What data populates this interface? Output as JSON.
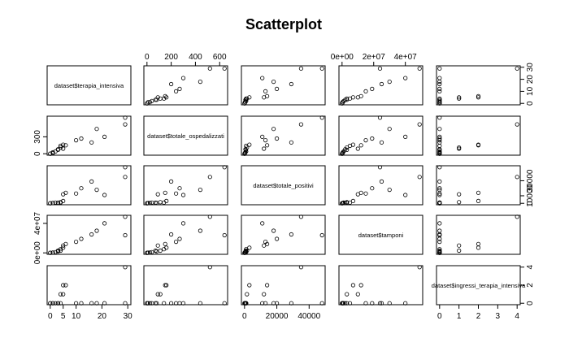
{
  "chart_data": {
    "type": "scatter",
    "title": "Scatterplot",
    "variables": [
      {
        "label": "dataset$terapia_intensiva",
        "range": [
          0,
          30
        ],
        "ticks": [
          0,
          5,
          10,
          20,
          30
        ],
        "tick_labels": [
          "0",
          "5",
          "10",
          "20",
          "30"
        ],
        "values": [
          0,
          0,
          1,
          1,
          2,
          3,
          3,
          4,
          4,
          5,
          5,
          6,
          10,
          12,
          16,
          18,
          21,
          29,
          29
        ]
      },
      {
        "label": "dataset$totale_ospedalizzati",
        "range": [
          0,
          640
        ],
        "ticks": [
          0,
          200,
          400,
          600
        ],
        "tick_labels": [
          "0",
          "200",
          "400",
          "600"
        ],
        "values": [
          0,
          2,
          10,
          25,
          40,
          80,
          70,
          110,
          140,
          90,
          160,
          150,
          240,
          270,
          200,
          440,
          300,
          640,
          520
        ]
      },
      {
        "label": "dataset$totale_positivi",
        "range": [
          0,
          48000
        ],
        "ticks": [
          0,
          20000,
          40000
        ],
        "tick_labels": [
          "0",
          "20000",
          "40000"
        ],
        "values": [
          0,
          100,
          300,
          500,
          1000,
          600,
          800,
          1500,
          1000,
          12000,
          3000,
          14000,
          13000,
          20000,
          29000,
          18000,
          11000,
          48000,
          35000
        ]
      },
      {
        "label": "dataset$tamponi",
        "range": [
          0,
          49000000
        ],
        "ticks": [
          0,
          20000000,
          40000000
        ],
        "tick_labels": [
          "0e+00",
          "2e+07",
          "4e+07"
        ],
        "tick_labels_alt": [
          "0e+00",
          "4e+07"
        ],
        "tick_alt": [
          0,
          40000000
        ],
        "values": [
          0,
          100000,
          300000,
          500000,
          1000000,
          2000000,
          3000000,
          3000000,
          5000000,
          10000000,
          7000000,
          12000000,
          15000000,
          19000000,
          25000000,
          30000000,
          40000000,
          24000000,
          49000000
        ]
      },
      {
        "label": "dataset$ingressi_terapia_intensiva",
        "range": [
          0,
          4
        ],
        "ticks": [
          0,
          1,
          2,
          3,
          4
        ],
        "tick_labels": [
          "0",
          "1",
          "2",
          "3",
          "4"
        ],
        "tick_labels_alt": [
          "0",
          "2",
          "4"
        ],
        "tick_alt": [
          0,
          2,
          4
        ],
        "values": [
          0,
          0,
          0,
          0,
          0,
          0,
          0,
          1,
          0,
          1,
          2,
          2,
          0,
          0,
          0,
          0,
          0,
          0,
          4
        ]
      }
    ],
    "grid": false,
    "legend": "none"
  }
}
